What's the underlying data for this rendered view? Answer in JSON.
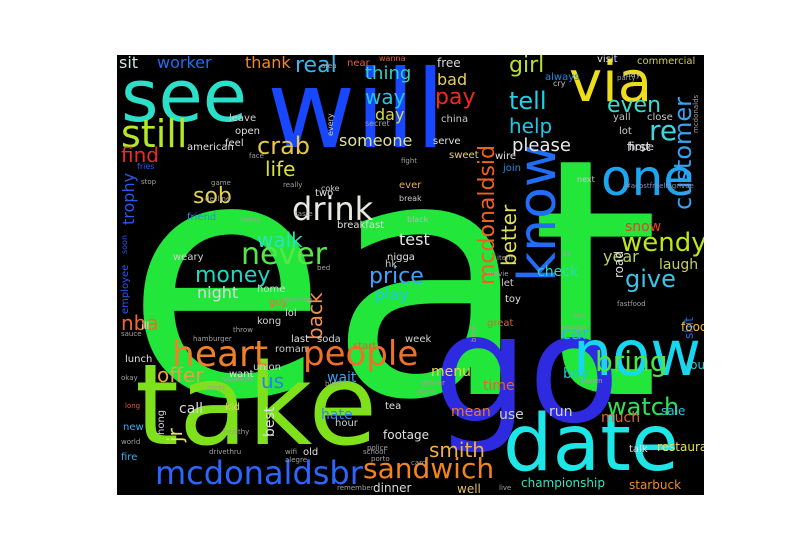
{
  "figure": {
    "background": "#ffffff",
    "canvas_background": "#000000"
  },
  "words": [
    {
      "text": "eat",
      "color": "#22e63a"
    },
    {
      "text": "go",
      "color": "#2e2adf"
    },
    {
      "text": "take",
      "color": "#7fe01c"
    },
    {
      "text": "will",
      "color": "#1747ff"
    },
    {
      "text": "date",
      "color": "#1fe6e6"
    },
    {
      "text": "see",
      "color": "#2ae0c8"
    },
    {
      "text": "now",
      "color": "#17d7ef"
    },
    {
      "text": "via",
      "color": "#eedd1b"
    },
    {
      "text": "one",
      "color": "#1ca6f0"
    },
    {
      "text": "know",
      "color": "#1f6ef5"
    },
    {
      "text": "mcdonaldsbr",
      "color": "#2b66ff"
    },
    {
      "text": "still",
      "color": "#b4e62a"
    },
    {
      "text": "heart",
      "color": "#f08028"
    },
    {
      "text": "people",
      "color": "#f0702a"
    },
    {
      "text": "never",
      "color": "#58e64a"
    },
    {
      "text": "drink",
      "color": "#e8e8e0"
    },
    {
      "text": "sandwich",
      "color": "#f2841c"
    },
    {
      "text": "mcdonaldsid",
      "color": "#f06020"
    },
    {
      "text": "bring",
      "color": "#4ee63c"
    },
    {
      "text": "watch",
      "color": "#2ee05a"
    },
    {
      "text": "customer",
      "color": "#3aa0f0"
    },
    {
      "text": "wendy",
      "color": "#bde61c"
    },
    {
      "text": "tell",
      "color": "#1cd2e6"
    },
    {
      "text": "re",
      "color": "#3cd8e0"
    },
    {
      "text": "even",
      "color": "#38e0d0"
    },
    {
      "text": "give",
      "color": "#3cc4e8"
    },
    {
      "text": "better",
      "color": "#e0e050"
    },
    {
      "text": "pay",
      "color": "#f02a1e"
    },
    {
      "text": "crab",
      "color": "#e6c84a"
    },
    {
      "text": "money",
      "color": "#20d6c0"
    },
    {
      "text": "price",
      "color": "#3ea2ff"
    },
    {
      "text": "real",
      "color": "#38b8f0"
    },
    {
      "text": "girl",
      "color": "#b8e030"
    },
    {
      "text": "way",
      "color": "#26c8e0"
    },
    {
      "text": "help",
      "color": "#1cc8e8"
    },
    {
      "text": "find",
      "color": "#f0282a"
    },
    {
      "text": "life",
      "color": "#d8e040"
    },
    {
      "text": "sob",
      "color": "#e6d248"
    },
    {
      "text": "walk",
      "color": "#2ee0c0"
    },
    {
      "text": "back",
      "color": "#f09050"
    },
    {
      "text": "nba",
      "color": "#f06a28"
    },
    {
      "text": "offer",
      "color": "#e8a040"
    },
    {
      "text": "us",
      "color": "#2a7ef0"
    },
    {
      "text": "smith",
      "color": "#f0b048"
    },
    {
      "text": "jr",
      "color": "#e8e060"
    },
    {
      "text": "thing",
      "color": "#30d2c0"
    },
    {
      "text": "please",
      "color": "#e8e8e8"
    },
    {
      "text": "sit",
      "color": "#cfe6e6"
    },
    {
      "text": "worker",
      "color": "#1e6ef0"
    },
    {
      "text": "thank",
      "color": "#f08a20"
    },
    {
      "text": "trophy",
      "color": "#2a5af0"
    },
    {
      "text": "night",
      "color": "#d8d8e0"
    },
    {
      "text": "play",
      "color": "#1ec8e8"
    },
    {
      "text": "test",
      "color": "#e6e6e6"
    },
    {
      "text": "someone",
      "color": "#e0e0a0"
    },
    {
      "text": "day",
      "color": "#d8d850"
    },
    {
      "text": "bad",
      "color": "#e6d060"
    },
    {
      "text": "free",
      "color": "#d8d8d8"
    },
    {
      "text": "year",
      "color": "#b8d060"
    },
    {
      "text": "laugh",
      "color": "#c8d060"
    },
    {
      "text": "snow",
      "color": "#e64028"
    },
    {
      "text": "check",
      "color": "#30d8c0"
    },
    {
      "text": "car",
      "color": "#3ab0f0"
    },
    {
      "text": "boy",
      "color": "#1ec8d8"
    },
    {
      "text": "wait",
      "color": "#3aa0f0"
    },
    {
      "text": "hate",
      "color": "#2a8af0"
    },
    {
      "text": "call",
      "color": "#d8d8e0"
    },
    {
      "text": "best",
      "color": "#e0e0e0"
    },
    {
      "text": "menu",
      "color": "#e8d850"
    },
    {
      "text": "much",
      "color": "#e06828"
    },
    {
      "text": "run",
      "color": "#d8d8d8"
    },
    {
      "text": "use",
      "color": "#d0d0d0"
    },
    {
      "text": "time",
      "color": "#f06028"
    },
    {
      "text": "mean",
      "color": "#f07828"
    },
    {
      "text": "championship",
      "color": "#3ae0c0"
    },
    {
      "text": "starbuck",
      "color": "#f08a20"
    },
    {
      "text": "dinner",
      "color": "#d8d8d8"
    },
    {
      "text": "well",
      "color": "#e0c060"
    },
    {
      "text": "footage",
      "color": "#e0e0e0"
    },
    {
      "text": "restaurant",
      "color": "#e0e060"
    },
    {
      "text": "sale",
      "color": "#30c0e0"
    },
    {
      "text": "youtube",
      "color": "#2ac8d8"
    },
    {
      "text": "shit",
      "color": "#1e6ae0"
    },
    {
      "text": "food",
      "color": "#e8c050"
    },
    {
      "text": "road",
      "color": "#e0e0e0"
    },
    {
      "text": "first",
      "color": "#e0e0e0"
    },
    {
      "text": "hope",
      "color": "#d8d8e0"
    },
    {
      "text": "lot",
      "color": "#d0d0d0"
    },
    {
      "text": "yall",
      "color": "#c0c0c0"
    },
    {
      "text": "close",
      "color": "#c8c8c8"
    },
    {
      "text": "visit",
      "color": "#e0e0e0"
    },
    {
      "text": "commercial",
      "color": "#d0d040"
    },
    {
      "text": "always",
      "color": "#1e8ae0"
    },
    {
      "text": "china",
      "color": "#c8c8c8"
    },
    {
      "text": "serve",
      "color": "#e0e0e0"
    },
    {
      "text": "sweet",
      "color": "#e6d060"
    },
    {
      "text": "wire",
      "color": "#e0e0e0"
    },
    {
      "text": "join",
      "color": "#2a8ae0"
    },
    {
      "text": "american",
      "color": "#e0e0e0"
    },
    {
      "text": "feel",
      "color": "#e0e0e0"
    },
    {
      "text": "open",
      "color": "#e0e0e0"
    },
    {
      "text": "leave",
      "color": "#d0d0d0"
    },
    {
      "text": "near",
      "color": "#e06040"
    },
    {
      "text": "two",
      "color": "#e0e0e0"
    },
    {
      "text": "breakfast",
      "color": "#e0e0e0"
    },
    {
      "text": "ever",
      "color": "#e6b050"
    },
    {
      "text": "nigga",
      "color": "#e0e0e0"
    },
    {
      "text": "hk",
      "color": "#c8c8c8"
    },
    {
      "text": "toy",
      "color": "#e0e0e0"
    },
    {
      "text": "let",
      "color": "#d0d0d0"
    },
    {
      "text": "great",
      "color": "#e06030"
    },
    {
      "text": "friend",
      "color": "#2a8af0"
    },
    {
      "text": "weary",
      "color": "#d0d0d0"
    },
    {
      "text": "employee",
      "color": "#2a5af0"
    },
    {
      "text": "guy",
      "color": "#f07030"
    },
    {
      "text": "home",
      "color": "#d8d8d8"
    },
    {
      "text": "lol",
      "color": "#e0e0e0"
    },
    {
      "text": "kong",
      "color": "#d0d0d0"
    },
    {
      "text": "soda",
      "color": "#d8d8d8"
    },
    {
      "text": "last",
      "color": "#e0e0e0"
    },
    {
      "text": "start",
      "color": "#e06030"
    },
    {
      "text": "week",
      "color": "#d0d0d0"
    },
    {
      "text": "roman",
      "color": "#c8c8c8"
    },
    {
      "text": "ill",
      "color": "#e0e0e0"
    },
    {
      "text": "lunch",
      "color": "#e0e0e0"
    },
    {
      "text": "want",
      "color": "#e0e0e0"
    },
    {
      "text": "union",
      "color": "#d0d0d0"
    },
    {
      "text": "kid",
      "color": "#e0d060"
    },
    {
      "text": "tea",
      "color": "#e0e0e0"
    },
    {
      "text": "hour",
      "color": "#d0d0d0"
    },
    {
      "text": "old",
      "color": "#e0e0e0"
    },
    {
      "text": "hong",
      "color": "#d0d0d0"
    },
    {
      "text": "new",
      "color": "#3ab0f0"
    },
    {
      "text": "fire",
      "color": "#3ab0f0"
    },
    {
      "text": "talk",
      "color": "#e0e0e0"
    },
    {
      "text": "soon",
      "color": "#2a5af0"
    },
    {
      "text": "fries",
      "color": "#2a5af0"
    },
    {
      "text": "coke",
      "color": "#c8c8c8"
    },
    {
      "text": "break",
      "color": "#c8c8c8"
    },
    {
      "text": "black",
      "color": "#b8b8b8"
    },
    {
      "text": "every",
      "color": "#c8c8c8"
    },
    {
      "text": "secret",
      "color": "#a0a0a0"
    },
    {
      "text": "wanna",
      "color": "#e06030"
    },
    {
      "text": "cry",
      "color": "#c0c0c0"
    },
    {
      "text": "may",
      "color": "#c0c0c0"
    },
    {
      "text": "next",
      "color": "#c8c8c8"
    },
    {
      "text": "party",
      "color": "#a0a0a0"
    },
    {
      "text": "game",
      "color": "#a0a0a0"
    },
    {
      "text": "decline",
      "color": "#a0a0a0"
    },
    {
      "text": "today",
      "color": "#a0a0a0"
    },
    {
      "text": "taste",
      "color": "#a0a0a0"
    },
    {
      "text": "stop",
      "color": "#a0a0a0"
    },
    {
      "text": "face",
      "color": "#a0a0a0"
    },
    {
      "text": "really",
      "color": "#a0a0a0"
    },
    {
      "text": "area",
      "color": "#a0a0a0"
    },
    {
      "text": "police",
      "color": "#a0a0a0"
    },
    {
      "text": "porto",
      "color": "#a0a0a0"
    },
    {
      "text": "fight",
      "color": "#a0a0a0"
    },
    {
      "text": "item",
      "color": "#a0a0a0"
    },
    {
      "text": "bc",
      "color": "#a0a0a0"
    },
    {
      "text": "movie",
      "color": "#a0a0a0"
    },
    {
      "text": "fastfood",
      "color": "#a0a0a0"
    },
    {
      "text": "say",
      "color": "#a0a0a0"
    },
    {
      "text": "tonight",
      "color": "#a0a0a0"
    },
    {
      "text": "sauce",
      "color": "#a0a0a0"
    },
    {
      "text": "hamburger",
      "color": "#a0a0a0"
    },
    {
      "text": "okay",
      "color": "#a0a0a0"
    },
    {
      "text": "long",
      "color": "#e06030"
    },
    {
      "text": "world",
      "color": "#a0a0a0"
    },
    {
      "text": "healthy",
      "color": "#a0a0a0"
    },
    {
      "text": "meet",
      "color": "#a0a0a0"
    },
    {
      "text": "drivethru",
      "color": "#a0a0a0"
    },
    {
      "text": "wifi",
      "color": "#a0a0a0"
    },
    {
      "text": "alegre",
      "color": "#a0a0a0"
    },
    {
      "text": "school",
      "color": "#a0a0a0"
    },
    {
      "text": "remember",
      "color": "#a0a0a0"
    },
    {
      "text": "card",
      "color": "#a0a0a0"
    },
    {
      "text": "live",
      "color": "#a0a0a0"
    },
    {
      "text": "deliver",
      "color": "#a0a0a0"
    },
    {
      "text": "place",
      "color": "#a0a0a0"
    },
    {
      "text": "brown",
      "color": "#a0a0a0"
    },
    {
      "text": "morning",
      "color": "#a0a0a0"
    },
    {
      "text": "bed",
      "color": "#a0a0a0"
    },
    {
      "text": "throw",
      "color": "#a0a0a0"
    },
    {
      "text": "squeeze",
      "color": "#a0a0a0"
    },
    {
      "text": "birth",
      "color": "#a0a0a0"
    },
    {
      "text": "#acostfreelingrivee",
      "color": "#8090c0"
    },
    {
      "text": "mcdonalds",
      "color": "#a0a0a0"
    },
    {
      "text": "bitch",
      "color": "#a0a0a0"
    }
  ]
}
